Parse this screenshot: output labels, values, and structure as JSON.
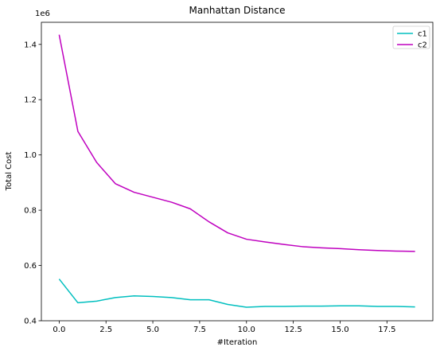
{
  "chart_data": {
    "type": "line",
    "title": "Manhattan Distance",
    "xlabel": "#Iteration",
    "ylabel": "Total Cost",
    "y_offset_text": "1e6",
    "xlim": [
      -0.95,
      19.95
    ],
    "ylim": [
      0.4,
      1.48
    ],
    "x_ticks": [
      0.0,
      2.5,
      5.0,
      7.5,
      10.0,
      12.5,
      15.0,
      17.5
    ],
    "x_tick_labels": [
      "0.0",
      "2.5",
      "5.0",
      "7.5",
      "10.0",
      "12.5",
      "15.0",
      "17.5"
    ],
    "y_ticks": [
      0.4,
      0.6,
      0.8,
      1.0,
      1.2,
      1.4
    ],
    "y_tick_labels": [
      "0.4",
      "0.6",
      "0.8",
      "1.0",
      "1.2",
      "1.4"
    ],
    "grid": false,
    "legend_position": "top-right",
    "x": [
      0,
      1,
      2,
      3,
      4,
      5,
      6,
      7,
      8,
      9,
      10,
      11,
      12,
      13,
      14,
      15,
      16,
      17,
      18,
      19
    ],
    "series": [
      {
        "name": "c1",
        "color": "#00bfbf",
        "values": [
          0.551,
          0.465,
          0.471,
          0.484,
          0.49,
          0.488,
          0.484,
          0.476,
          0.476,
          0.459,
          0.449,
          0.452,
          0.452,
          0.453,
          0.453,
          0.454,
          0.454,
          0.452,
          0.452,
          0.45
        ]
      },
      {
        "name": "c2",
        "color": "#bf00bf",
        "values": [
          1.435,
          1.085,
          0.973,
          0.896,
          0.865,
          0.847,
          0.829,
          0.805,
          0.758,
          0.718,
          0.695,
          0.685,
          0.676,
          0.668,
          0.664,
          0.661,
          0.657,
          0.654,
          0.652,
          0.651
        ]
      }
    ]
  }
}
